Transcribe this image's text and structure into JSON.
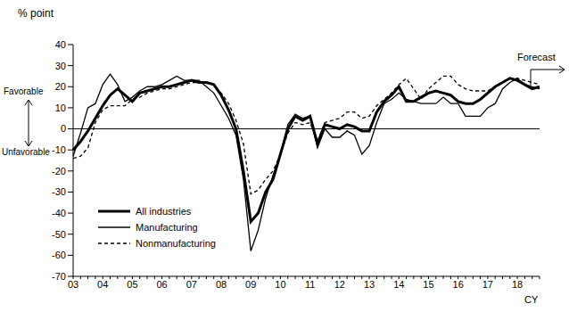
{
  "chart_data": {
    "type": "line",
    "y_label": "% point",
    "x_label": "CY",
    "annotations": [
      "Favorable",
      "Unfavorable",
      "Forecast"
    ],
    "categories": [
      "03",
      null,
      null,
      null,
      "04",
      null,
      null,
      null,
      "05",
      null,
      null,
      null,
      "06",
      null,
      null,
      null,
      "07",
      null,
      null,
      null,
      "08",
      null,
      null,
      null,
      "09",
      null,
      null,
      null,
      "10",
      null,
      null,
      null,
      "11",
      null,
      null,
      null,
      "12",
      null,
      null,
      null,
      "13",
      null,
      null,
      null,
      "14",
      null,
      null,
      null,
      "15",
      null,
      null,
      null,
      "16",
      null,
      null,
      null,
      "17",
      null,
      null,
      null,
      "18",
      null,
      null,
      null
    ],
    "series": [
      {
        "name": "All industries",
        "color": "#000000",
        "line_style": "solid",
        "values": [
          -10,
          -6,
          -1,
          5,
          11,
          16,
          19,
          16,
          13,
          17,
          18,
          19,
          20,
          20,
          21,
          22,
          23,
          22,
          22,
          21,
          16,
          9,
          0,
          -20,
          -44,
          -40,
          -30,
          -24,
          -12,
          0,
          6,
          4,
          6,
          -7,
          2,
          1,
          0,
          2,
          1,
          -1,
          -1,
          8,
          13,
          16,
          20,
          13,
          13,
          15,
          17,
          18,
          17,
          16,
          13,
          12,
          12,
          14,
          17,
          20,
          22,
          24,
          23,
          21,
          19,
          20
        ]
      },
      {
        "name": "Manufacturing",
        "color": "#000000",
        "line_style": "solid",
        "values": [
          -13,
          -2,
          10,
          12,
          21,
          26,
          21,
          13,
          15,
          18,
          20,
          20,
          21,
          23,
          25,
          23,
          23,
          23,
          20,
          17,
          11,
          5,
          -3,
          -24,
          -58,
          -48,
          -33,
          -22,
          -12,
          2,
          7,
          5,
          6,
          -9,
          0,
          -4,
          -4,
          -1,
          -3,
          -12,
          -8,
          3,
          12,
          14,
          17,
          14,
          13,
          12,
          12,
          12,
          15,
          12,
          12,
          6,
          6,
          6,
          10,
          12,
          19,
          22,
          24,
          21,
          20,
          19
        ]
      },
      {
        "name": "Nonmanufacturing",
        "color": "#000000",
        "line_style": "dashed",
        "values": [
          -14,
          -13,
          -9,
          3,
          9,
          11,
          11,
          11,
          14,
          15,
          17,
          18,
          19,
          19,
          20,
          21,
          22,
          22,
          22,
          21,
          17,
          12,
          4,
          -7,
          -31,
          -29,
          -24,
          -20,
          -12,
          -2,
          3,
          2,
          3,
          -6,
          3,
          4,
          5,
          8,
          8,
          5,
          6,
          11,
          14,
          17,
          21,
          24,
          19,
          14,
          19,
          22,
          25,
          25,
          21,
          19,
          18,
          18,
          18,
          20,
          22,
          24,
          24,
          23,
          22,
          21
        ]
      }
    ],
    "ylim": [
      -70,
      40
    ],
    "yticks": [
      -70,
      -60,
      -50,
      -40,
      -30,
      -20,
      -10,
      0,
      10,
      20,
      30,
      40
    ],
    "grid": false
  }
}
